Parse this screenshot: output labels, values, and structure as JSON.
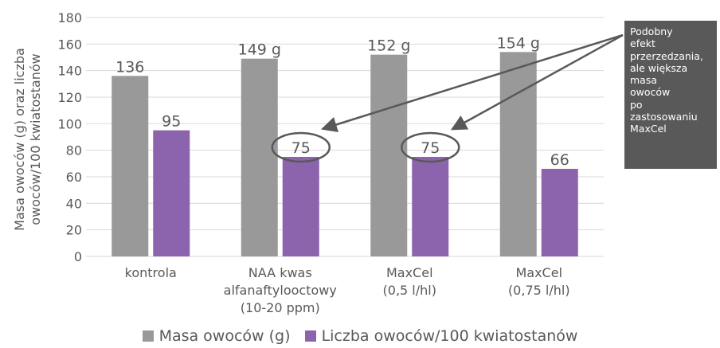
{
  "chart_data": {
    "type": "bar",
    "categories": [
      [
        "kontrola"
      ],
      [
        "NAA kwas",
        "alfanaftylooctowy",
        "(10-20 ppm)"
      ],
      [
        "MaxCel",
        "(0,5 l/hl)"
      ],
      [
        "MaxCel",
        "(0,75 l/hl)"
      ]
    ],
    "series": [
      {
        "name": "Masa owoców (g)",
        "values": [
          136,
          149,
          152,
          154
        ],
        "labels": [
          "136",
          "149 g",
          "152 g",
          "154 g"
        ],
        "color": "#999999"
      },
      {
        "name": "Liczba owoców/100 kwiatostanów",
        "values": [
          95,
          75,
          75,
          66
        ],
        "labels": [
          "95",
          "75",
          "75",
          "66"
        ],
        "color": "#8C63AD"
      }
    ],
    "ylabel": [
      "Masa owoców (g) oraz liczba",
      "owoców/100 kwiatostanów"
    ],
    "ylim": [
      0,
      180
    ],
    "yticks": [
      0,
      20,
      40,
      60,
      80,
      100,
      120,
      140,
      160,
      180
    ],
    "grid": true,
    "legend": "bottom",
    "annotation": {
      "text": "Podobny\nefekt\nprzerzedzania,\nale większa\nmasa\nowoców\npo\nzastosowaniu\nMaxCel",
      "highlighted_bars": [
        1,
        2
      ],
      "background": "#595959"
    }
  }
}
